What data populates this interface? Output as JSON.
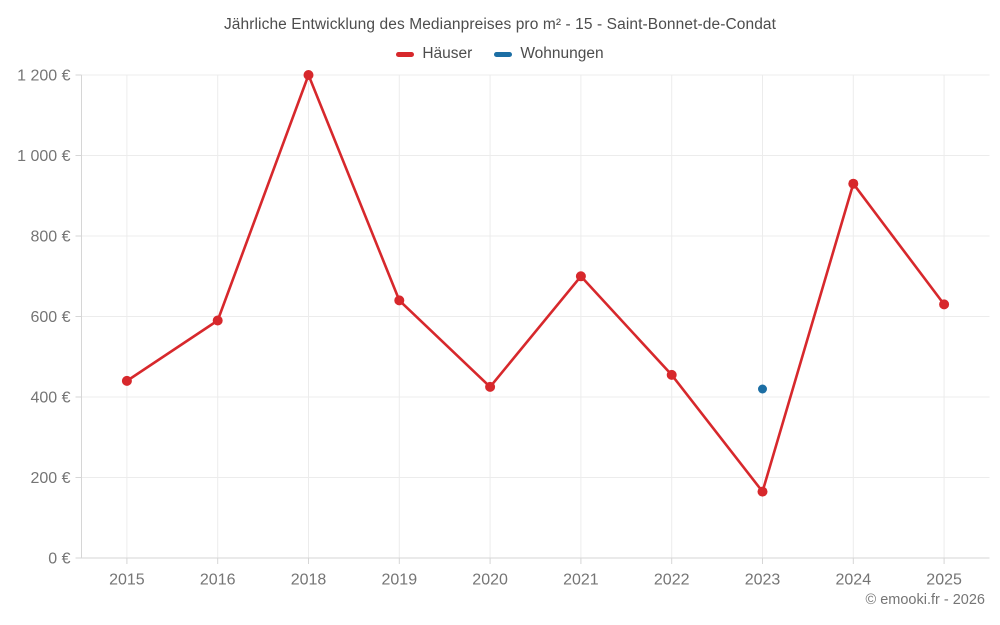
{
  "title": "Jährliche Entwicklung des Medianpreises pro m² - 15 - Saint-Bonnet-de-Condat",
  "footer": "© emooki.fr - 2026",
  "legend": {
    "items": [
      {
        "label": "Häuser",
        "color": "#d7282c"
      },
      {
        "label": "Wohnungen",
        "color": "#1c6ea4"
      }
    ]
  },
  "chart_data": {
    "type": "line",
    "title": "Jährliche Entwicklung des Medianpreises pro m² - 15 - Saint-Bonnet-de-Condat",
    "categories": [
      "2015",
      "2016",
      "2018",
      "2019",
      "2020",
      "2021",
      "2022",
      "2023",
      "2024",
      "2025"
    ],
    "series": [
      {
        "name": "Häuser",
        "color": "#d7282c",
        "point_radius": 5,
        "values": [
          440,
          590,
          1200,
          640,
          425,
          700,
          455,
          165,
          930,
          630
        ]
      },
      {
        "name": "Wohnungen",
        "color": "#1c6ea4",
        "point_radius": 4.5,
        "values": [
          null,
          null,
          null,
          null,
          null,
          null,
          null,
          420,
          null,
          null
        ]
      }
    ],
    "ylim": [
      0,
      1200
    ],
    "yticks": [
      0,
      200,
      400,
      600,
      800,
      1000,
      1200
    ],
    "ytick_labels": [
      "0 €",
      "200 €",
      "400 €",
      "600 €",
      "800 €",
      "1 000 €",
      "1 200 €"
    ],
    "currency": "€",
    "grid": true,
    "legend_position": "top"
  }
}
